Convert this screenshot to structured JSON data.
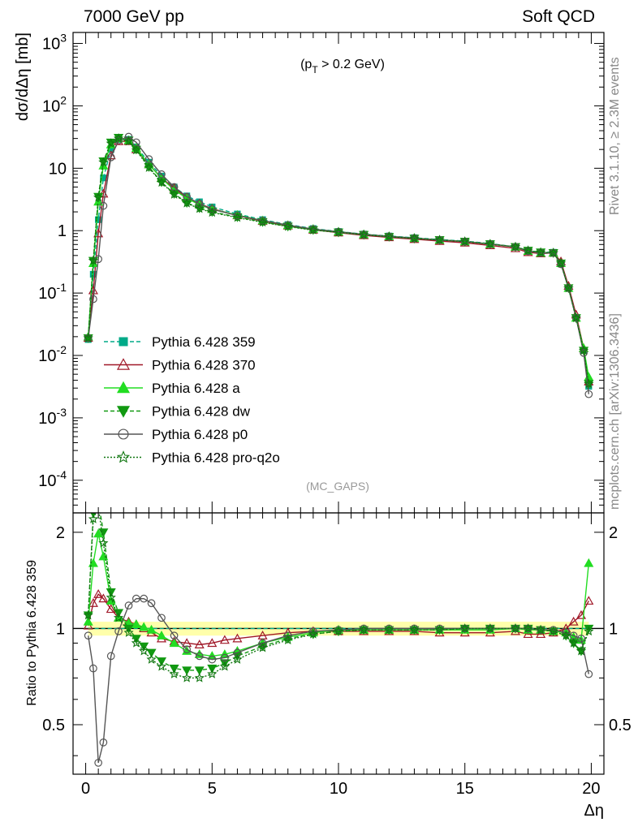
{
  "header": {
    "left": "7000 GeV pp",
    "right": "Soft QCD"
  },
  "side": {
    "rivet": "Rivet 3.1.10, ≥ 2.3M events",
    "mcplots": "mcplots.cern.ch [arXiv:1306.3436]"
  },
  "chart_data": [
    {
      "type": "line",
      "panel": "main",
      "annotation": "(p_T > 0.2 GeV)",
      "watermark": "(MC_GAPS)",
      "xlabel": "Δη",
      "ylabel": "dσ/dΔη [mb]",
      "xlim": [
        -0.5,
        20.5
      ],
      "ylim": [
        3e-05,
        1500
      ],
      "yscale": "log",
      "yticks": [
        "10^-4",
        "10^-3",
        "10^-2",
        "10^-1",
        "1",
        "10",
        "10^2",
        "10^3"
      ],
      "legend_position": "lower-left",
      "x": [
        0.1,
        0.3,
        0.5,
        0.7,
        1.0,
        1.3,
        1.7,
        2.0,
        2.5,
        3.0,
        3.5,
        4.0,
        4.5,
        5.0,
        6.0,
        7.0,
        8.0,
        9.0,
        10.0,
        11.0,
        12.0,
        13.0,
        14.0,
        15.0,
        16.0,
        17.0,
        17.5,
        18.0,
        18.5,
        18.8,
        19.1,
        19.4,
        19.7,
        19.9
      ],
      "series": [
        {
          "name": "Pythia 6.428 359",
          "color": "#00aa88",
          "dash": "5,3",
          "marker": "square-filled",
          "values": [
            0.018,
            0.2,
            1.5,
            7.0,
            20.0,
            29.0,
            29.0,
            22.0,
            12.5,
            7.5,
            5.0,
            3.6,
            2.9,
            2.4,
            1.85,
            1.5,
            1.25,
            1.08,
            0.97,
            0.88,
            0.82,
            0.77,
            0.72,
            0.68,
            0.62,
            0.55,
            0.48,
            0.45,
            0.45,
            0.3,
            0.12,
            0.04,
            0.012,
            0.0032
          ]
        },
        {
          "name": "Pythia 6.428 370",
          "color": "#a01828",
          "dash": "",
          "marker": "triangle-open",
          "values": [
            0.019,
            0.11,
            0.9,
            3.9,
            16.0,
            27.0,
            27.0,
            20.0,
            11.5,
            7.0,
            4.8,
            3.4,
            2.7,
            2.25,
            1.75,
            1.42,
            1.2,
            1.03,
            0.93,
            0.84,
            0.78,
            0.73,
            0.68,
            0.64,
            0.58,
            0.52,
            0.45,
            0.43,
            0.44,
            0.32,
            0.13,
            0.045,
            0.013,
            0.0038
          ]
        },
        {
          "name": "Pythia 6.428 a",
          "color": "#22dd22",
          "dash": "",
          "marker": "triangle-filled",
          "values": [
            0.02,
            0.3,
            2.9,
            11.0,
            24.0,
            30.0,
            28.0,
            21.0,
            11.5,
            6.9,
            4.5,
            3.3,
            2.6,
            2.2,
            1.78,
            1.45,
            1.22,
            1.06,
            0.96,
            0.87,
            0.81,
            0.76,
            0.71,
            0.67,
            0.61,
            0.55,
            0.47,
            0.44,
            0.44,
            0.3,
            0.12,
            0.04,
            0.013,
            0.0045
          ]
        },
        {
          "name": "Pythia 6.428 dw",
          "color": "#119911",
          "dash": "5,3",
          "marker": "triangle-down-filled",
          "values": [
            0.019,
            0.33,
            3.5,
            13.0,
            26.0,
            31.0,
            28.0,
            20.0,
            10.5,
            6.0,
            3.9,
            2.8,
            2.3,
            2.0,
            1.65,
            1.38,
            1.17,
            1.03,
            0.94,
            0.86,
            0.8,
            0.75,
            0.71,
            0.67,
            0.61,
            0.55,
            0.48,
            0.45,
            0.44,
            0.3,
            0.12,
            0.04,
            0.012,
            0.0035
          ]
        },
        {
          "name": "Pythia 6.428 p0",
          "color": "#555555",
          "dash": "",
          "marker": "circle-open",
          "values": [
            0.019,
            0.08,
            0.35,
            2.5,
            15.0,
            28.0,
            32.0,
            26.0,
            14.0,
            8.0,
            5.0,
            3.5,
            2.7,
            2.2,
            1.75,
            1.45,
            1.23,
            1.06,
            0.96,
            0.87,
            0.81,
            0.76,
            0.71,
            0.67,
            0.61,
            0.55,
            0.47,
            0.44,
            0.44,
            0.29,
            0.12,
            0.04,
            0.011,
            0.0024
          ]
        },
        {
          "name": "Pythia 6.428 pro-q2o",
          "color": "#117711",
          "dash": "2,2",
          "marker": "star-open",
          "values": [
            0.019,
            0.33,
            3.4,
            12.5,
            25.0,
            30.0,
            27.0,
            19.5,
            10.2,
            5.9,
            3.8,
            2.75,
            2.25,
            1.95,
            1.62,
            1.36,
            1.16,
            1.02,
            0.94,
            0.86,
            0.8,
            0.75,
            0.71,
            0.67,
            0.61,
            0.55,
            0.48,
            0.45,
            0.44,
            0.3,
            0.12,
            0.04,
            0.012,
            0.0035
          ]
        }
      ]
    },
    {
      "type": "line",
      "panel": "ratio",
      "xlabel": "Δη",
      "ylabel": "Ratio to Pythia 6.428 359",
      "xlim": [
        -0.5,
        20.5
      ],
      "ylim": [
        0.35,
        2.3
      ],
      "yscale": "log",
      "yticks": [
        "0.5",
        "1",
        "2"
      ],
      "xticks": [
        "0",
        "5",
        "10",
        "15",
        "20"
      ],
      "x": [
        0.1,
        0.3,
        0.5,
        0.7,
        1.0,
        1.3,
        1.7,
        2.0,
        2.3,
        2.6,
        3.0,
        3.5,
        4.0,
        4.5,
        5.0,
        5.5,
        6.0,
        7.0,
        8.0,
        9.0,
        10.0,
        11.0,
        12.0,
        13.0,
        14.0,
        15.0,
        16.0,
        17.0,
        17.5,
        18.0,
        18.5,
        19.0,
        19.3,
        19.6,
        19.9
      ],
      "series": [
        {
          "name": "Pythia 6.428 359",
          "color": "#00aa88",
          "values": [
            1,
            1,
            1,
            1,
            1,
            1,
            1,
            1,
            1,
            1,
            1,
            1,
            1,
            1,
            1,
            1,
            1,
            1,
            1,
            1,
            1,
            1,
            1,
            1,
            1,
            1,
            1,
            1,
            1,
            1,
            1,
            1,
            1,
            1,
            1
          ]
        },
        {
          "name": "Pythia 6.428 370",
          "color": "#a01828",
          "values": [
            1.02,
            1.2,
            1.28,
            1.24,
            1.15,
            1.08,
            1.05,
            1.03,
            1.0,
            0.97,
            0.93,
            0.91,
            0.9,
            0.89,
            0.9,
            0.92,
            0.93,
            0.95,
            0.97,
            0.98,
            0.98,
            0.98,
            0.98,
            0.98,
            0.97,
            0.97,
            0.97,
            0.98,
            0.96,
            0.96,
            0.97,
            1.0,
            1.05,
            1.1,
            1.22
          ]
        },
        {
          "name": "Pythia 6.428 a",
          "color": "#22dd22",
          "values": [
            1.05,
            1.6,
            1.98,
            1.68,
            1.22,
            1.08,
            1.04,
            1.03,
            1.01,
            0.99,
            0.95,
            0.9,
            0.85,
            0.83,
            0.82,
            0.83,
            0.85,
            0.9,
            0.94,
            0.97,
            0.99,
            0.99,
            0.99,
            0.99,
            0.99,
            0.99,
            0.99,
            1.0,
            0.99,
            0.99,
            0.98,
            0.97,
            0.94,
            0.92,
            1.6
          ]
        },
        {
          "name": "Pythia 6.428 dw",
          "color": "#119911",
          "values": [
            1.1,
            2.3,
            2.5,
            2.0,
            1.3,
            1.12,
            1.0,
            0.93,
            0.88,
            0.84,
            0.79,
            0.75,
            0.74,
            0.74,
            0.75,
            0.78,
            0.82,
            0.88,
            0.93,
            0.96,
            0.98,
            0.99,
            0.99,
            0.99,
            0.99,
            1.0,
            1.0,
            1.0,
            1.0,
            0.99,
            0.98,
            0.95,
            0.9,
            0.85,
            1.0
          ]
        },
        {
          "name": "Pythia 6.428 p0",
          "color": "#555555",
          "values": [
            0.95,
            0.75,
            0.38,
            0.44,
            0.82,
            0.98,
            1.18,
            1.24,
            1.24,
            1.2,
            1.08,
            0.95,
            0.86,
            0.82,
            0.8,
            0.81,
            0.84,
            0.9,
            0.95,
            0.98,
            0.99,
            1.0,
            1.0,
            1.0,
            1.0,
            1.0,
            1.0,
            1.0,
            1.0,
            0.99,
            0.99,
            0.97,
            0.95,
            0.93,
            0.72
          ]
        },
        {
          "name": "Pythia 6.428 pro-q2o",
          "color": "#117711",
          "values": [
            1.1,
            2.2,
            2.4,
            1.85,
            1.25,
            1.08,
            0.97,
            0.9,
            0.85,
            0.8,
            0.76,
            0.72,
            0.7,
            0.7,
            0.72,
            0.76,
            0.8,
            0.87,
            0.92,
            0.96,
            0.98,
            0.99,
            0.99,
            0.99,
            0.99,
            1.0,
            1.0,
            1.0,
            1.0,
            0.99,
            0.98,
            0.95,
            0.9,
            0.85,
            0.98
          ]
        }
      ]
    }
  ]
}
